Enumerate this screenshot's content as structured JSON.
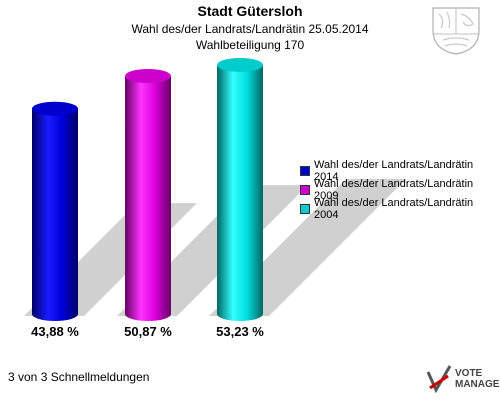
{
  "header": {
    "title": "Stadt Gütersloh",
    "subtitle": "Wahl des/der Landrats/Landrätin 25.05.2014",
    "turnout": "Wahlbeteiligung 170"
  },
  "chart_data": {
    "type": "bar",
    "categories": [
      "Wahl des/der Landrats/Landrätin 2014",
      "Wahl des/der Landrats/Landrätin 2009",
      "Wahl des/der Landrats/Landrätin 2004"
    ],
    "values": [
      43.88,
      50.87,
      53.23
    ],
    "value_labels": [
      "43,88 %",
      "50,87 %",
      "53,23 %"
    ],
    "colors": [
      "#0000cc",
      "#cc00cc",
      "#00cccc"
    ],
    "ylim": [
      0,
      56
    ],
    "legend": {
      "position": "right",
      "entries": [
        "Wahl des/der Landrats/Landrätin 2014",
        "Wahl des/der Landrats/Landrätin 2009",
        "Wahl des/der Landrats/Landrätin 2004"
      ]
    },
    "grid": false
  },
  "footer": {
    "status": "3 von 3 Schnellmeldungen",
    "logo_text_line1": "VOTE",
    "logo_text_line2": "MANAGER"
  }
}
